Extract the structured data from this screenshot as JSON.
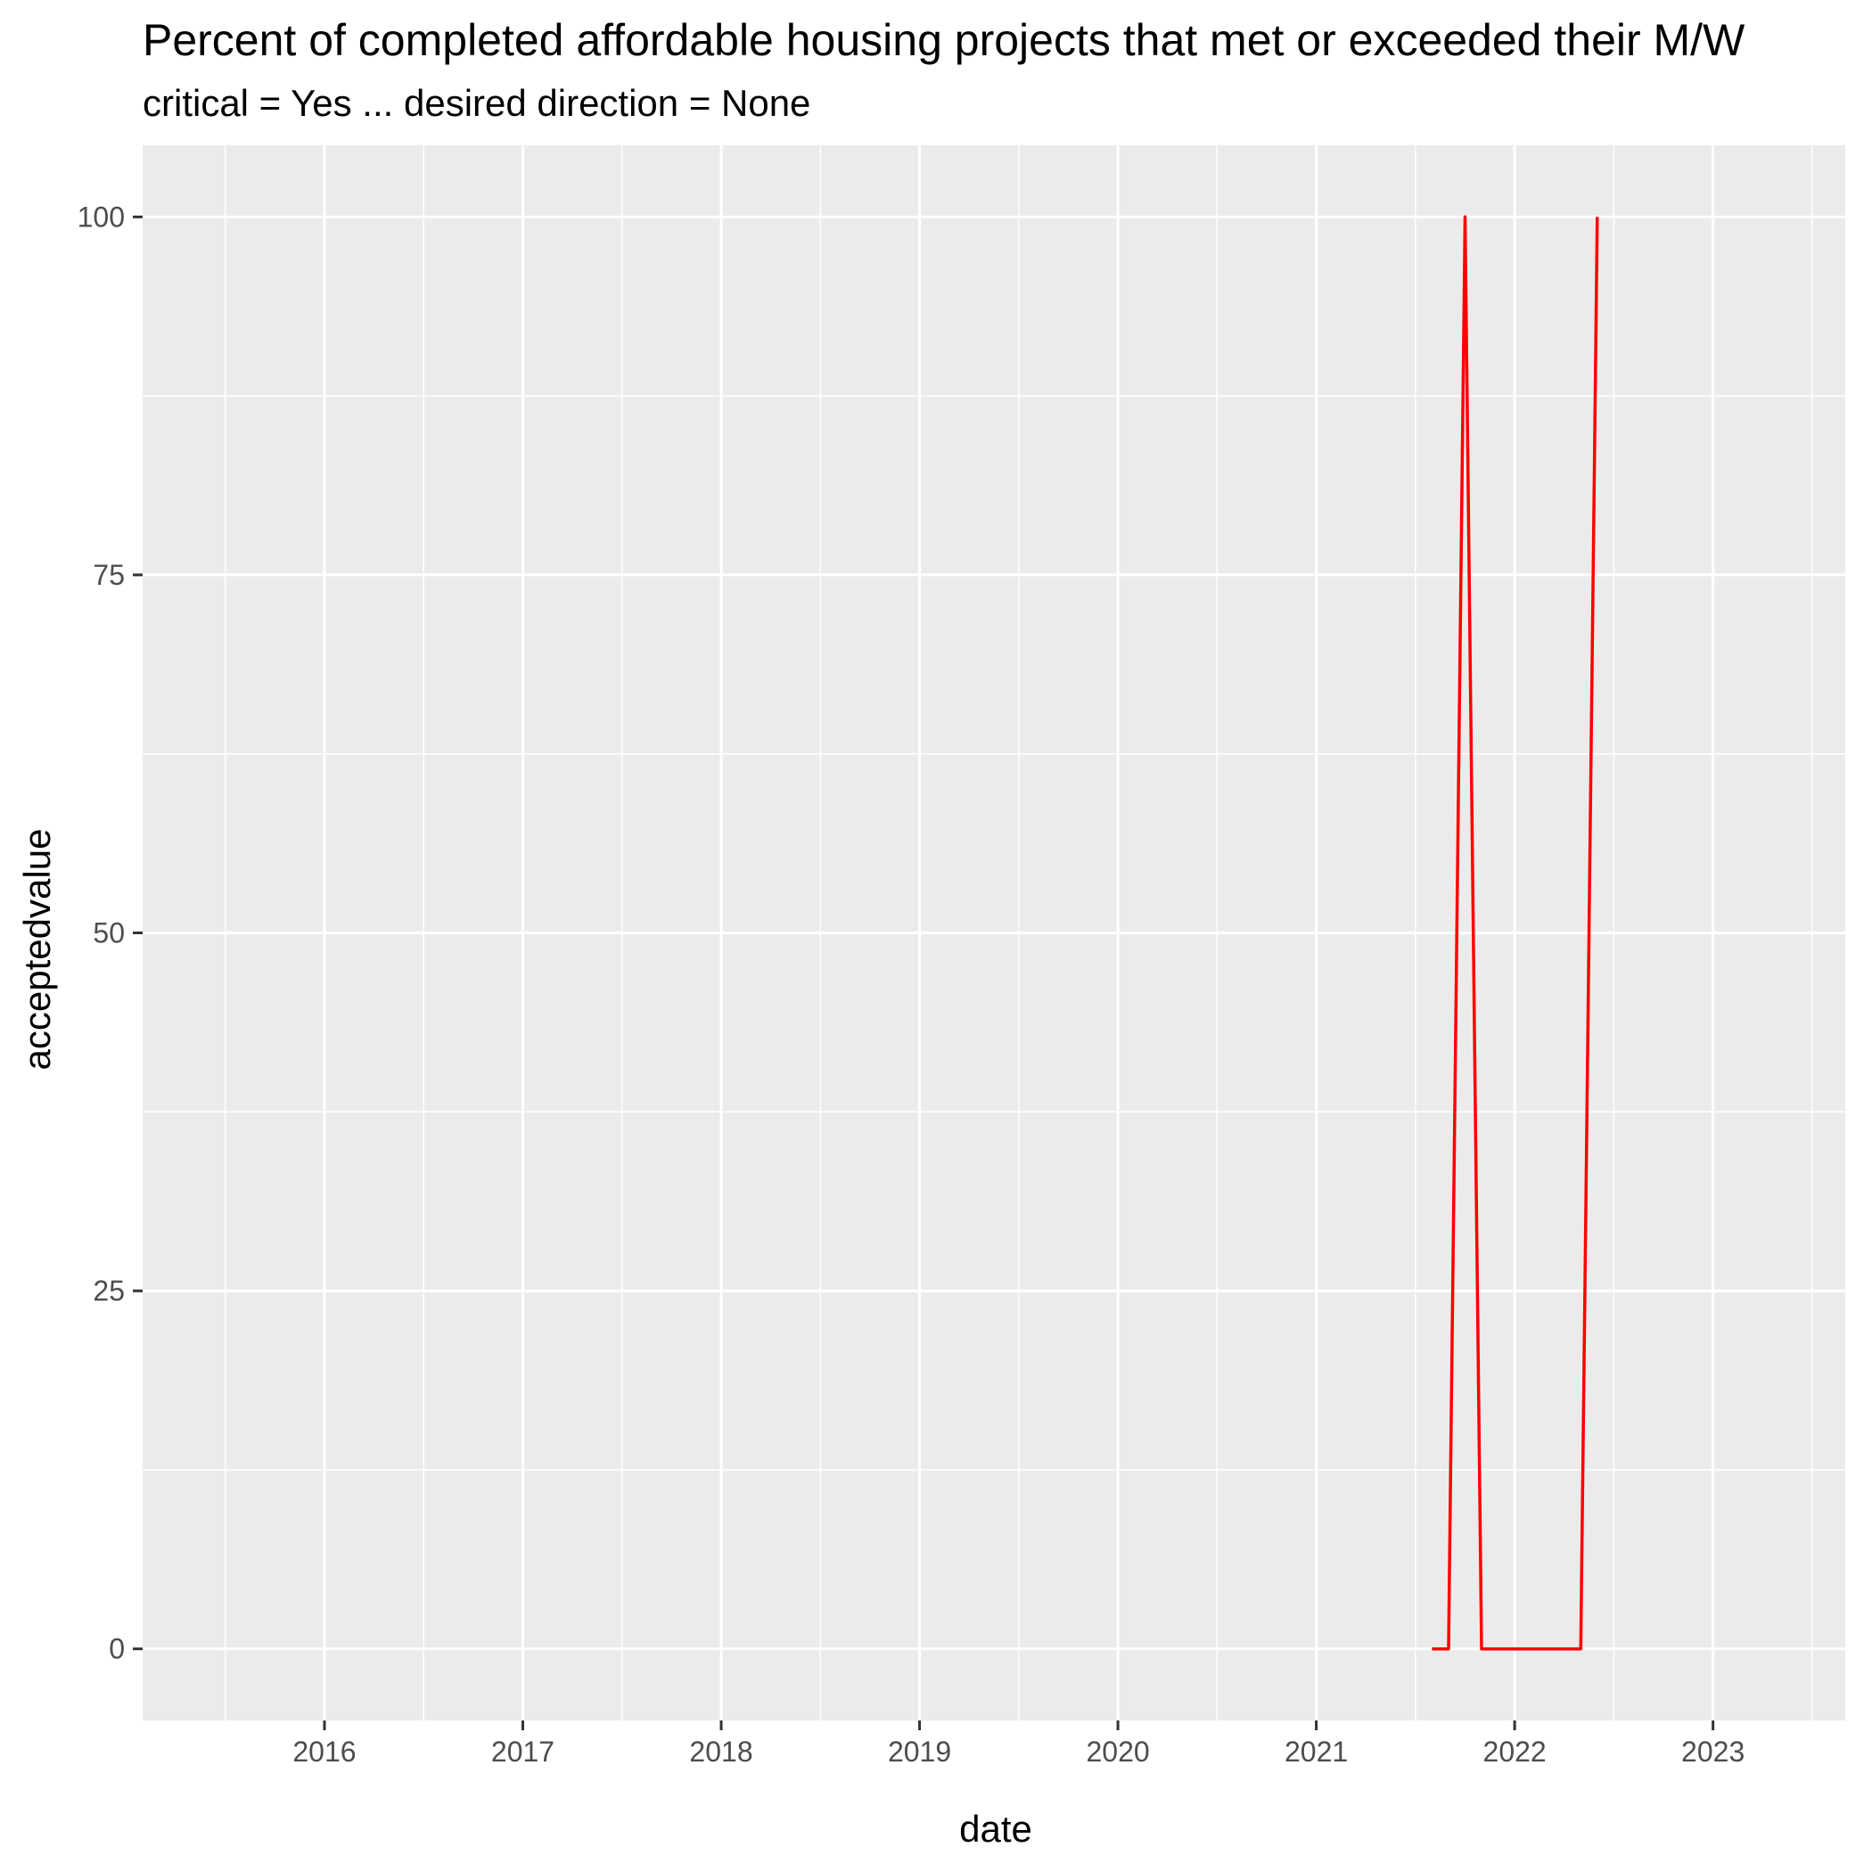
{
  "chart_data": {
    "type": "line",
    "title": "Percent of completed affordable housing projects that met or exceeded their M/W",
    "subtitle": "critical = Yes ... desired direction = None",
    "xlabel": "date",
    "ylabel": "acceptedvalue",
    "x_ticks": [
      "2016",
      "2017",
      "2018",
      "2019",
      "2020",
      "2021",
      "2022",
      "2023"
    ],
    "y_ticks": [
      0,
      25,
      50,
      75,
      100
    ],
    "xlim": [
      "2015-02-01",
      "2023-09-01"
    ],
    "ylim": [
      -5,
      105
    ],
    "grid": true,
    "series": [
      {
        "color": "#ff0000",
        "points": [
          {
            "x": "2021-08-01",
            "y": 0
          },
          {
            "x": "2021-09-01",
            "y": 0
          },
          {
            "x": "2021-10-01",
            "y": 100
          },
          {
            "x": "2021-11-01",
            "y": 0
          },
          {
            "x": "2021-12-01",
            "y": 0
          },
          {
            "x": "2022-01-01",
            "y": 0
          },
          {
            "x": "2022-02-01",
            "y": 0
          },
          {
            "x": "2022-03-01",
            "y": 0
          },
          {
            "x": "2022-04-01",
            "y": 0
          },
          {
            "x": "2022-05-01",
            "y": 0
          },
          {
            "x": "2022-06-01",
            "y": 100
          }
        ]
      }
    ]
  }
}
